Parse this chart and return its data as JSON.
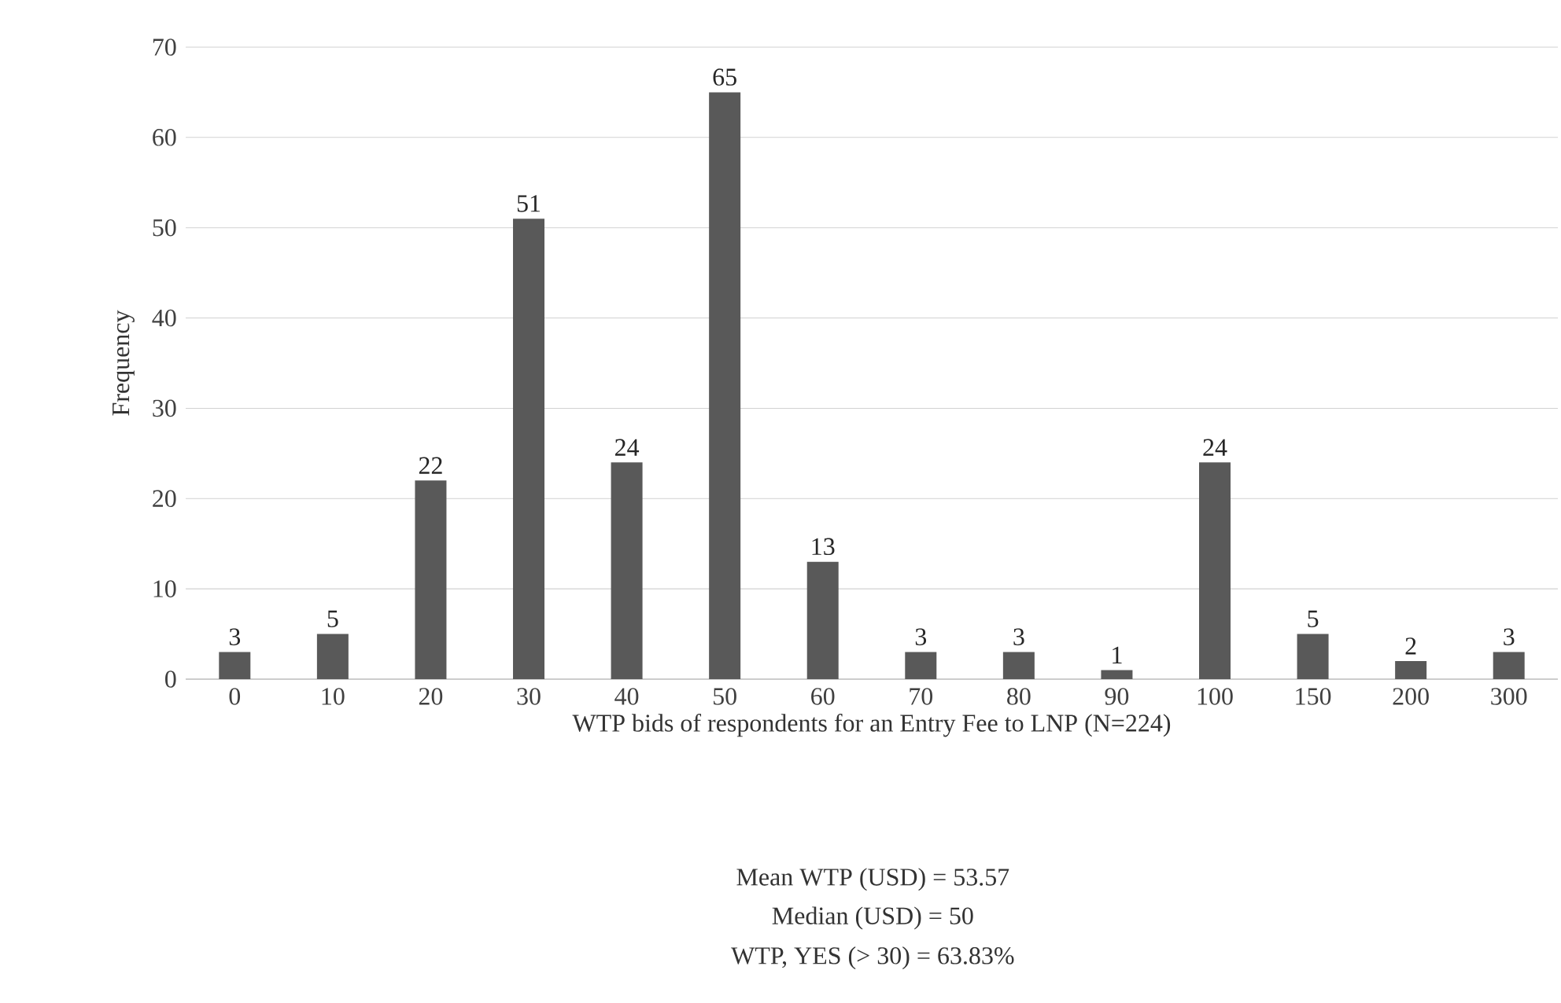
{
  "chart_data": {
    "type": "bar",
    "xlabel": "WTP bids of respondents  for an Entry  Fee to LNP (N=224)",
    "ylabel": "Frequency",
    "categories": [
      "0",
      "10",
      "20",
      "30",
      "40",
      "50",
      "60",
      "70",
      "80",
      "90",
      "100",
      "150",
      "200",
      "300"
    ],
    "values": [
      3,
      5,
      22,
      51,
      24,
      65,
      13,
      3,
      3,
      1,
      24,
      5,
      2,
      3
    ],
    "color": "#595959",
    "ylim": [
      0,
      70
    ],
    "yticks": [
      0,
      10,
      20,
      30,
      40,
      50,
      60,
      70
    ],
    "grid": "y",
    "data_labels": true,
    "annotations": [
      "Mean WTP (USD) = 53.57",
      "Median  (USD) = 50",
      "WTP, YES  (> 30) = 63.83%"
    ]
  }
}
